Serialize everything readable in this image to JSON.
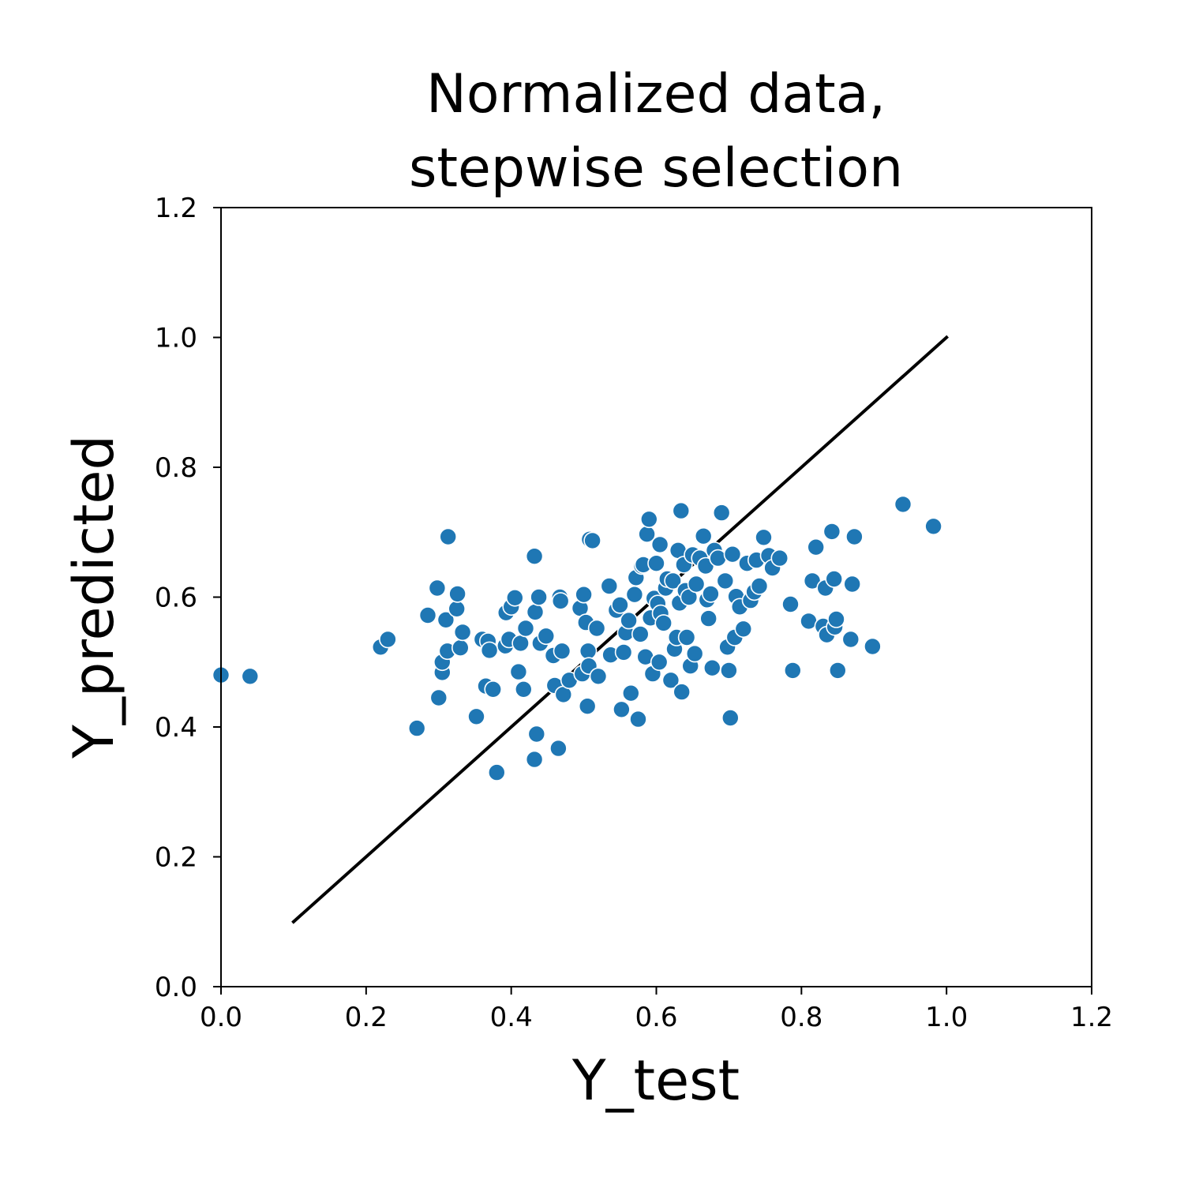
{
  "chart_data": {
    "type": "scatter",
    "title_lines": [
      "Normalized data,",
      "stepwise selection"
    ],
    "xlabel": "Y_test",
    "ylabel": "Y_predicted",
    "xlim": [
      0.0,
      1.2
    ],
    "ylim": [
      0.0,
      1.2
    ],
    "xticks": [
      "0.0",
      "0.2",
      "0.4",
      "0.6",
      "0.8",
      "1.0",
      "1.2"
    ],
    "yticks": [
      "0.0",
      "0.2",
      "0.4",
      "0.6",
      "0.8",
      "1.0",
      "1.2"
    ],
    "grid": false,
    "legend": "none",
    "point_color": "#1f77b4",
    "line_color": "#000000",
    "reference_line": {
      "x": [
        0.1,
        1.0
      ],
      "y": [
        0.1,
        1.0
      ]
    },
    "points": [
      [
        0.0,
        0.48
      ],
      [
        0.04,
        0.478
      ],
      [
        0.22,
        0.523
      ],
      [
        0.23,
        0.535
      ],
      [
        0.27,
        0.398
      ],
      [
        0.285,
        0.572
      ],
      [
        0.298,
        0.614
      ],
      [
        0.3,
        0.445
      ],
      [
        0.305,
        0.484
      ],
      [
        0.305,
        0.5
      ],
      [
        0.31,
        0.565
      ],
      [
        0.312,
        0.517
      ],
      [
        0.313,
        0.693
      ],
      [
        0.325,
        0.582
      ],
      [
        0.326,
        0.605
      ],
      [
        0.33,
        0.522
      ],
      [
        0.333,
        0.546
      ],
      [
        0.352,
        0.416
      ],
      [
        0.36,
        0.535
      ],
      [
        0.365,
        0.463
      ],
      [
        0.368,
        0.532
      ],
      [
        0.37,
        0.518
      ],
      [
        0.375,
        0.458
      ],
      [
        0.38,
        0.33
      ],
      [
        0.392,
        0.525
      ],
      [
        0.393,
        0.576
      ],
      [
        0.397,
        0.535
      ],
      [
        0.4,
        0.585
      ],
      [
        0.405,
        0.599
      ],
      [
        0.41,
        0.485
      ],
      [
        0.413,
        0.529
      ],
      [
        0.417,
        0.458
      ],
      [
        0.42,
        0.552
      ],
      [
        0.432,
        0.663
      ],
      [
        0.432,
        0.35
      ],
      [
        0.433,
        0.577
      ],
      [
        0.435,
        0.389
      ],
      [
        0.438,
        0.6
      ],
      [
        0.44,
        0.529
      ],
      [
        0.448,
        0.54
      ],
      [
        0.458,
        0.51
      ],
      [
        0.46,
        0.464
      ],
      [
        0.465,
        0.367
      ],
      [
        0.467,
        0.6
      ],
      [
        0.468,
        0.594
      ],
      [
        0.47,
        0.517
      ],
      [
        0.472,
        0.45
      ],
      [
        0.48,
        0.472
      ],
      [
        0.495,
        0.583
      ],
      [
        0.498,
        0.482
      ],
      [
        0.5,
        0.604
      ],
      [
        0.503,
        0.561
      ],
      [
        0.505,
        0.432
      ],
      [
        0.506,
        0.517
      ],
      [
        0.507,
        0.494
      ],
      [
        0.508,
        0.689
      ],
      [
        0.512,
        0.687
      ],
      [
        0.518,
        0.552
      ],
      [
        0.52,
        0.478
      ],
      [
        0.535,
        0.617
      ],
      [
        0.537,
        0.511
      ],
      [
        0.545,
        0.58
      ],
      [
        0.55,
        0.588
      ],
      [
        0.552,
        0.427
      ],
      [
        0.555,
        0.515
      ],
      [
        0.558,
        0.545
      ],
      [
        0.562,
        0.564
      ],
      [
        0.565,
        0.452
      ],
      [
        0.57,
        0.604
      ],
      [
        0.572,
        0.63
      ],
      [
        0.575,
        0.412
      ],
      [
        0.578,
        0.543
      ],
      [
        0.58,
        0.648
      ],
      [
        0.582,
        0.65
      ],
      [
        0.585,
        0.508
      ],
      [
        0.587,
        0.697
      ],
      [
        0.59,
        0.72
      ],
      [
        0.592,
        0.568
      ],
      [
        0.595,
        0.482
      ],
      [
        0.597,
        0.598
      ],
      [
        0.6,
        0.652
      ],
      [
        0.602,
        0.59
      ],
      [
        0.604,
        0.5
      ],
      [
        0.605,
        0.681
      ],
      [
        0.606,
        0.575
      ],
      [
        0.61,
        0.56
      ],
      [
        0.613,
        0.614
      ],
      [
        0.615,
        0.628
      ],
      [
        0.62,
        0.472
      ],
      [
        0.623,
        0.625
      ],
      [
        0.625,
        0.52
      ],
      [
        0.628,
        0.538
      ],
      [
        0.63,
        0.672
      ],
      [
        0.632,
        0.591
      ],
      [
        0.634,
        0.733
      ],
      [
        0.635,
        0.454
      ],
      [
        0.638,
        0.65
      ],
      [
        0.64,
        0.61
      ],
      [
        0.642,
        0.538
      ],
      [
        0.645,
        0.6
      ],
      [
        0.647,
        0.494
      ],
      [
        0.65,
        0.665
      ],
      [
        0.653,
        0.513
      ],
      [
        0.655,
        0.62
      ],
      [
        0.66,
        0.66
      ],
      [
        0.665,
        0.694
      ],
      [
        0.668,
        0.648
      ],
      [
        0.67,
        0.596
      ],
      [
        0.672,
        0.567
      ],
      [
        0.675,
        0.605
      ],
      [
        0.677,
        0.491
      ],
      [
        0.68,
        0.672
      ],
      [
        0.685,
        0.66
      ],
      [
        0.69,
        0.73
      ],
      [
        0.695,
        0.625
      ],
      [
        0.698,
        0.523
      ],
      [
        0.7,
        0.487
      ],
      [
        0.702,
        0.414
      ],
      [
        0.705,
        0.666
      ],
      [
        0.708,
        0.538
      ],
      [
        0.71,
        0.601
      ],
      [
        0.715,
        0.585
      ],
      [
        0.72,
        0.551
      ],
      [
        0.725,
        0.652
      ],
      [
        0.73,
        0.595
      ],
      [
        0.735,
        0.608
      ],
      [
        0.738,
        0.657
      ],
      [
        0.742,
        0.617
      ],
      [
        0.748,
        0.692
      ],
      [
        0.755,
        0.664
      ],
      [
        0.76,
        0.645
      ],
      [
        0.77,
        0.66
      ],
      [
        0.785,
        0.589
      ],
      [
        0.788,
        0.487
      ],
      [
        0.81,
        0.563
      ],
      [
        0.815,
        0.625
      ],
      [
        0.82,
        0.677
      ],
      [
        0.83,
        0.555
      ],
      [
        0.833,
        0.614
      ],
      [
        0.835,
        0.542
      ],
      [
        0.842,
        0.701
      ],
      [
        0.845,
        0.628
      ],
      [
        0.846,
        0.554
      ],
      [
        0.848,
        0.566
      ],
      [
        0.85,
        0.487
      ],
      [
        0.868,
        0.535
      ],
      [
        0.87,
        0.62
      ],
      [
        0.873,
        0.693
      ],
      [
        0.898,
        0.524
      ],
      [
        0.94,
        0.743
      ],
      [
        0.982,
        0.709
      ]
    ]
  }
}
